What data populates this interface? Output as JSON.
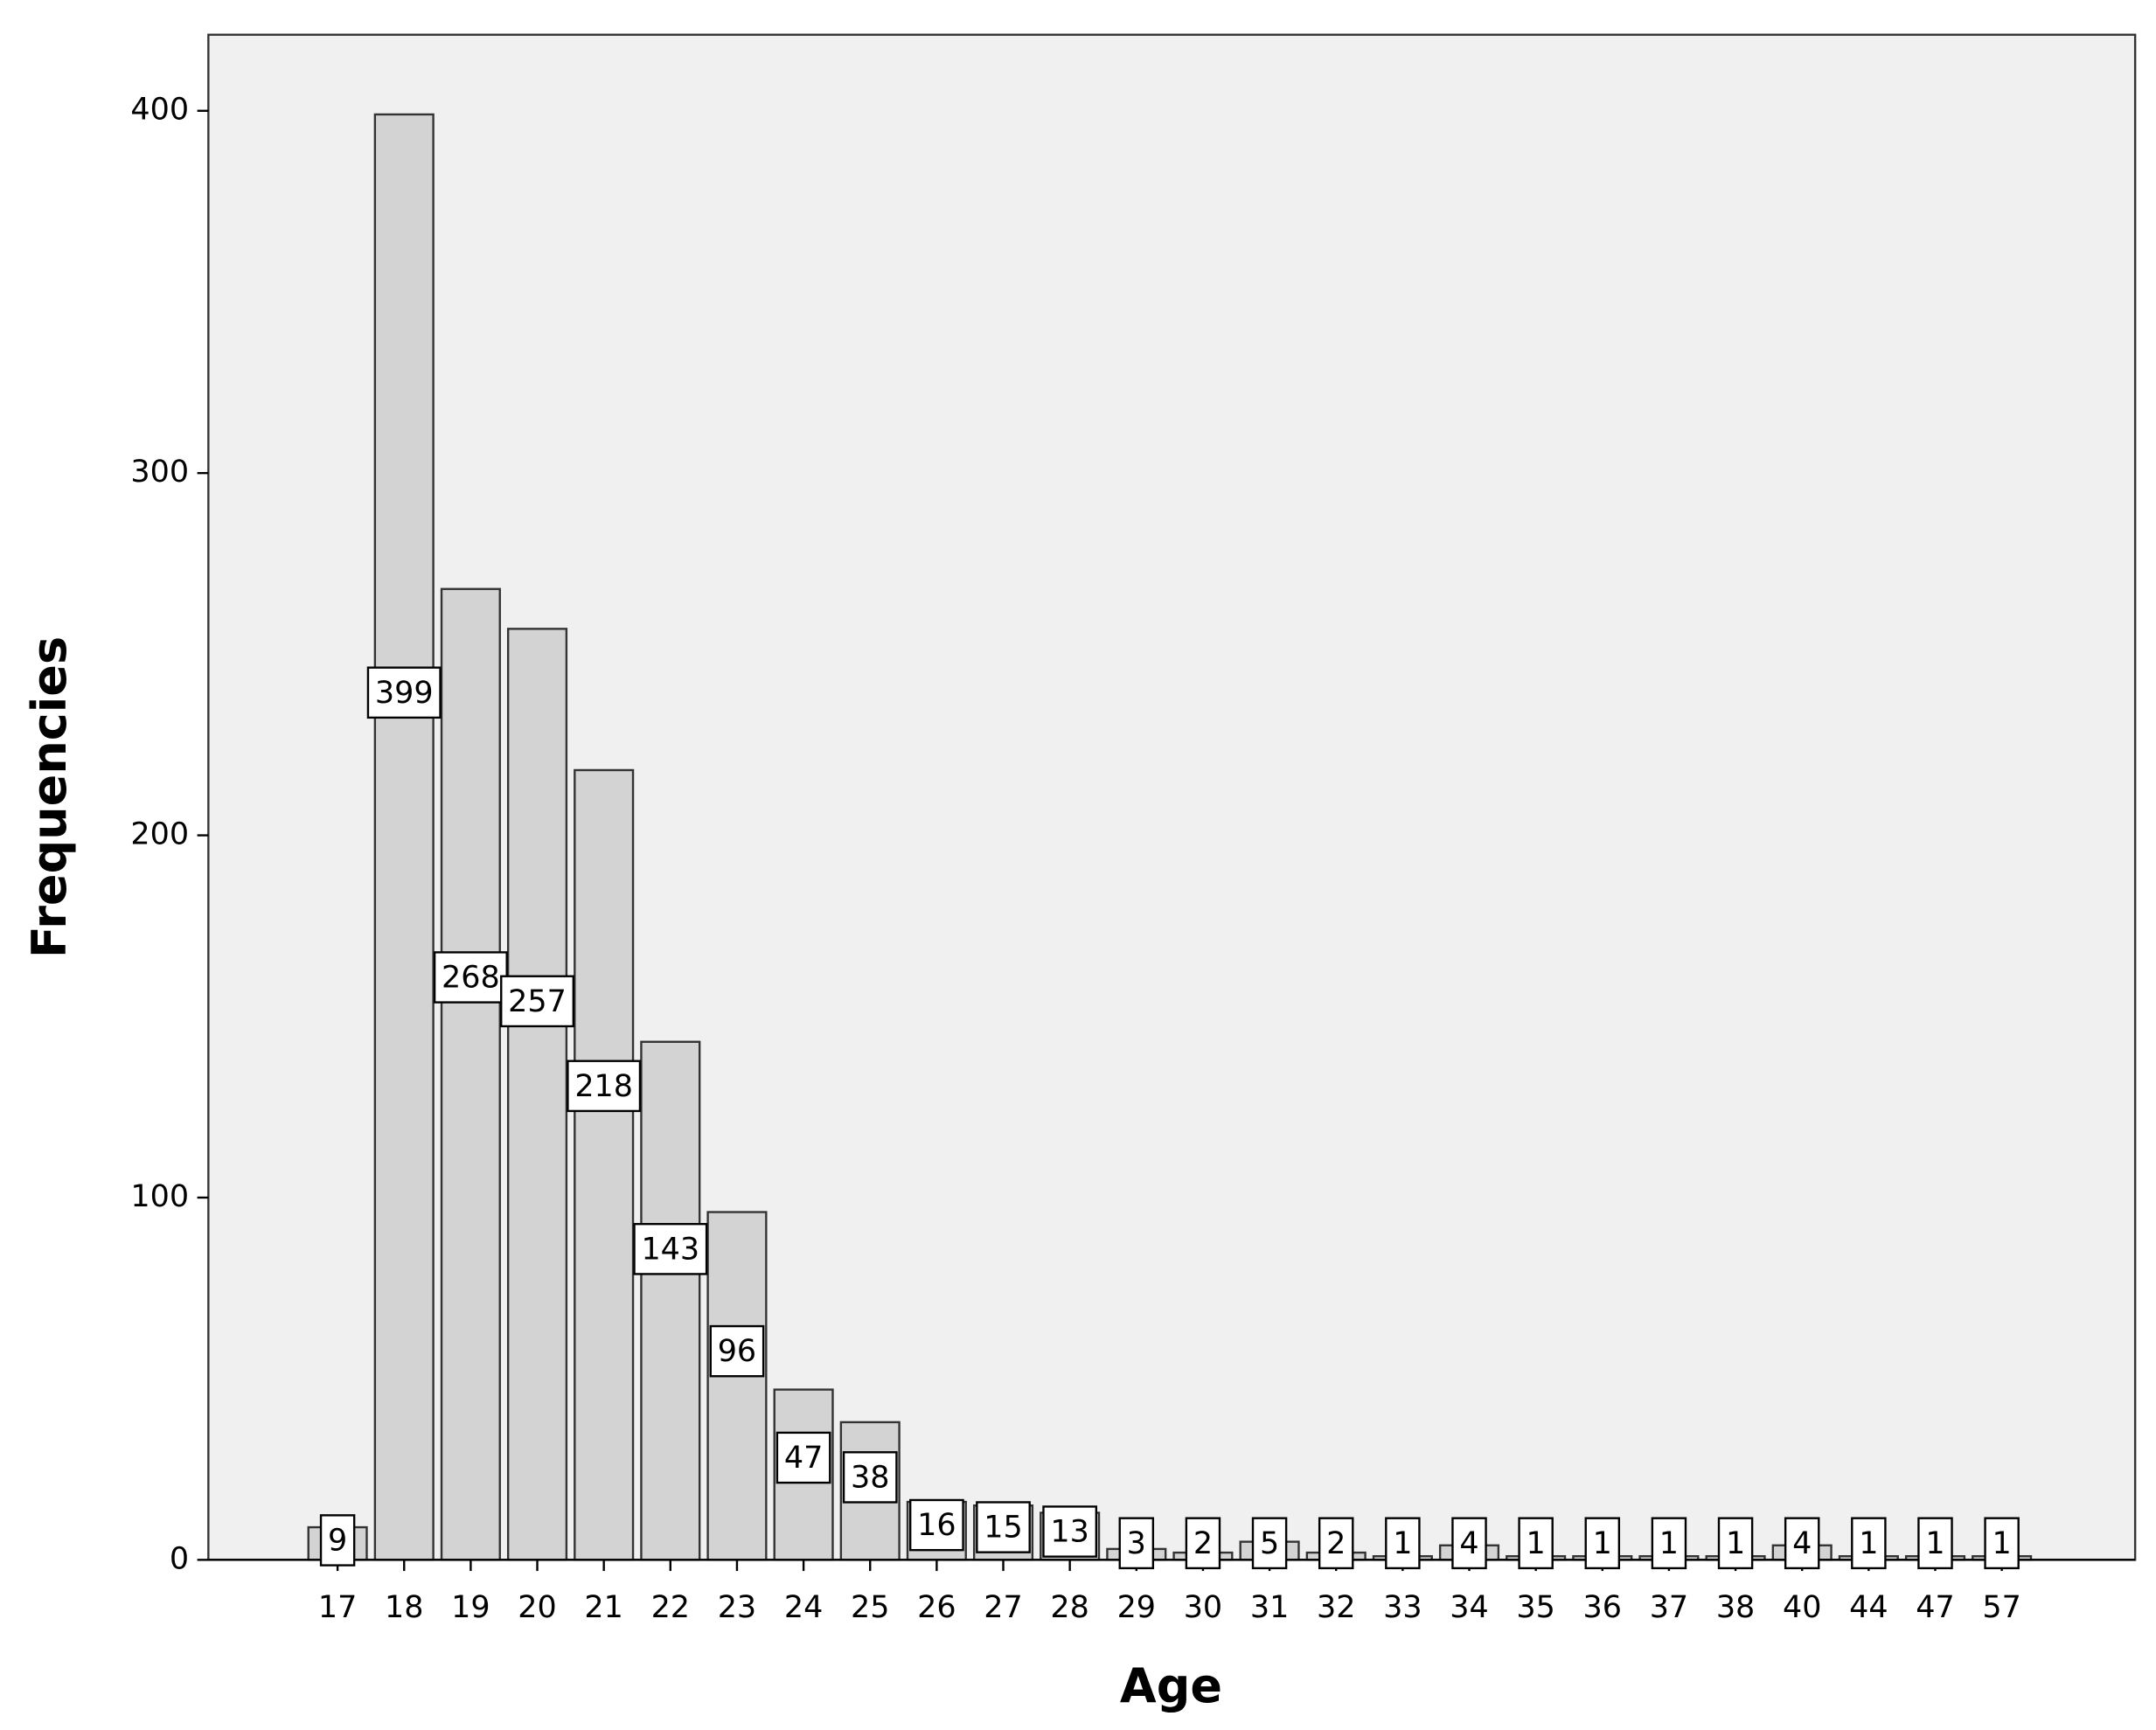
{
  "chart_data": {
    "type": "bar",
    "x_label": "Age",
    "y_label": "Frequencies",
    "categories": [
      "17",
      "18",
      "19",
      "20",
      "21",
      "22",
      "23",
      "24",
      "25",
      "26",
      "27",
      "28",
      "29",
      "30",
      "31",
      "32",
      "33",
      "34",
      "35",
      "36",
      "37",
      "38",
      "40",
      "44",
      "47",
      "57"
    ],
    "values": [
      9,
      399,
      268,
      257,
      218,
      143,
      96,
      47,
      38,
      16,
      15,
      13,
      3,
      2,
      5,
      2,
      1,
      4,
      1,
      1,
      1,
      1,
      4,
      1,
      1,
      1
    ],
    "color": "#d3d3d3",
    "ylim": [
      0,
      421
    ],
    "yticks": [
      0,
      100,
      200,
      300,
      400
    ],
    "grid": false
  }
}
